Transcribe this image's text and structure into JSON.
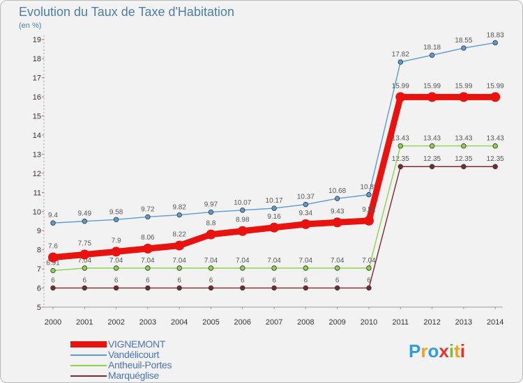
{
  "title": "Evolution du Taux de Taxe d'Habitation",
  "unit": "(en %)",
  "brand": {
    "letters": [
      "P",
      "r",
      "o",
      "x",
      "i",
      "t",
      "i"
    ],
    "colors": [
      "#2f9be0",
      "#f3a11d",
      "#2f9be0",
      "#e6332a",
      "#80b93c",
      "#f3a11d",
      "#e6332a"
    ]
  },
  "chart_data": {
    "type": "line",
    "categories": [
      "2000",
      "2001",
      "2002",
      "2003",
      "2004",
      "2005",
      "2006",
      "2007",
      "2008",
      "2009",
      "2010",
      "2011",
      "2012",
      "2013",
      "2014"
    ],
    "ylim": [
      5,
      19
    ],
    "yticks": [
      5,
      6,
      7,
      8,
      9,
      10,
      11,
      12,
      13,
      14,
      15,
      16,
      17,
      18,
      19
    ],
    "grid": false,
    "legend_position": "bottom-left",
    "series": [
      {
        "name": "Marquéglise",
        "color": "#7a2a2a",
        "values": [
          6,
          6,
          6,
          6,
          6,
          6,
          6,
          6,
          6,
          6,
          6,
          12.35,
          12.35,
          12.35,
          12.35
        ],
        "labels": [
          "6",
          "6",
          "6",
          "6",
          "6",
          "6",
          "6",
          "6",
          "6",
          "6",
          "6",
          "12.35",
          "12.35",
          "12.35",
          "12.35"
        ]
      },
      {
        "name": "Antheuil-Portes",
        "color": "#8cd24a",
        "values": [
          6.91,
          7.04,
          7.04,
          7.04,
          7.04,
          7.04,
          7.04,
          7.04,
          7.04,
          7.04,
          7.04,
          13.43,
          13.43,
          13.43,
          13.43
        ],
        "labels": [
          "6.91",
          "7.04",
          "7.04",
          "7.04",
          "7.04",
          "7.04",
          "7.04",
          "7.04",
          "7.04",
          "7.04",
          "7.04",
          "13.43",
          "13.43",
          "13.43",
          "13.43"
        ]
      },
      {
        "name": "Vandélicourt",
        "color": "#5b9bd1",
        "values": [
          9.4,
          9.49,
          9.58,
          9.72,
          9.82,
          9.97,
          10.07,
          10.17,
          10.37,
          10.68,
          10.88,
          17.82,
          18.18,
          18.55,
          18.83
        ],
        "labels": [
          "9.4",
          "9.49",
          "9.58",
          "9.72",
          "9.82",
          "9.97",
          "10.07",
          "10.17",
          "10.37",
          "10.68",
          "10.88",
          "17.82",
          "18.18",
          "18.55",
          "18.83"
        ]
      },
      {
        "name": "VIGNEMONT",
        "color": "#e8120e",
        "values": [
          7.6,
          7.75,
          7.9,
          8.06,
          8.22,
          8.8,
          8.98,
          9.16,
          9.34,
          9.43,
          9.52,
          15.99,
          15.99,
          15.99,
          15.99
        ],
        "labels": [
          "7.6",
          "7.75",
          "7.9",
          "8.06",
          "8.22",
          "8.8",
          "8.98",
          "9.16",
          "9.34",
          "9.43",
          "9.52",
          "15.99",
          "15.99",
          "15.99",
          "15.99"
        ]
      }
    ],
    "legend_order": [
      "VIGNEMONT",
      "Vandélicourt",
      "Antheuil-Portes",
      "Marquéglise"
    ]
  }
}
